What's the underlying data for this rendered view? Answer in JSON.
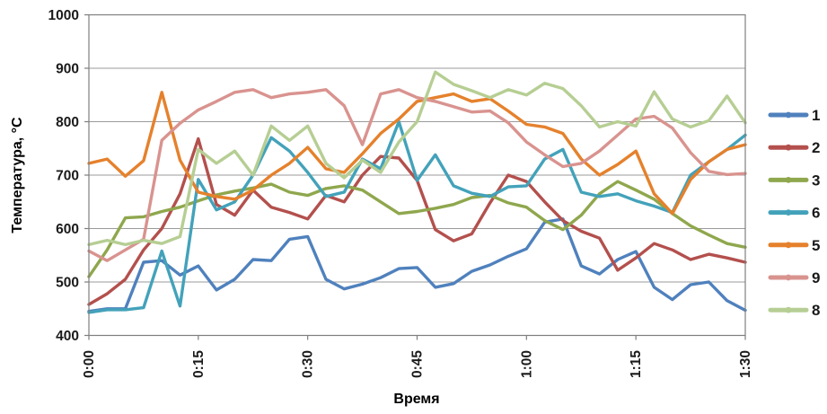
{
  "chart_data": {
    "type": "line",
    "title": "",
    "xlabel": "Время",
    "ylabel": "Температура, °C",
    "ylim": [
      400,
      1000
    ],
    "y_ticks": [
      400,
      500,
      600,
      700,
      800,
      900,
      1000
    ],
    "x_tick_minutes": [
      0,
      15,
      30,
      45,
      60,
      75,
      90
    ],
    "x_tick_labels": [
      "0:00",
      "0:15",
      "0:30",
      "0:45",
      "1:00",
      "1:15",
      "1:30"
    ],
    "grid": "horizontal",
    "legend_position": "right",
    "x_minutes": [
      0,
      2.5,
      5,
      7.5,
      10,
      12.5,
      15,
      17.5,
      20,
      22.5,
      25,
      27.5,
      30,
      32.5,
      35,
      37.5,
      40,
      42.5,
      45,
      47.5,
      50,
      52.5,
      55,
      57.5,
      60,
      62.5,
      65,
      67.5,
      70,
      72.5,
      75,
      77.5,
      80,
      82.5,
      85,
      87.5,
      90
    ],
    "series": [
      {
        "name": "1",
        "color": "#4F81BD",
        "values": [
          445,
          450,
          450,
          537,
          540,
          513,
          530,
          485,
          505,
          542,
          540,
          580,
          585,
          505,
          487,
          496,
          508,
          525,
          527,
          490,
          497,
          520,
          532,
          548,
          562,
          612,
          618,
          530,
          515,
          542,
          557,
          490,
          467,
          495,
          500,
          465,
          447
        ]
      },
      {
        "name": "2",
        "color": "#B3504D",
        "values": [
          458,
          478,
          505,
          560,
          600,
          665,
          768,
          645,
          625,
          672,
          640,
          630,
          618,
          662,
          650,
          700,
          735,
          732,
          690,
          598,
          577,
          590,
          648,
          700,
          688,
          650,
          615,
          595,
          582,
          522,
          545,
          572,
          560,
          542,
          552,
          545,
          537
        ]
      },
      {
        "name": "3",
        "color": "#8FA74D",
        "values": [
          510,
          560,
          620,
          622,
          632,
          640,
          652,
          663,
          670,
          676,
          683,
          668,
          662,
          675,
          680,
          672,
          650,
          628,
          632,
          638,
          645,
          658,
          662,
          648,
          640,
          615,
          598,
          625,
          665,
          688,
          672,
          655,
          628,
          605,
          588,
          572,
          565
        ]
      },
      {
        "name": "6",
        "color": "#43A2BA",
        "values": [
          443,
          448,
          448,
          452,
          558,
          455,
          692,
          635,
          650,
          700,
          770,
          745,
          705,
          660,
          668,
          730,
          712,
          800,
          690,
          738,
          680,
          666,
          660,
          678,
          680,
          730,
          748,
          668,
          660,
          665,
          652,
          642,
          630,
          700,
          725,
          748,
          775
        ]
      },
      {
        "name": "5",
        "color": "#E5812C",
        "values": [
          722,
          730,
          698,
          727,
          855,
          728,
          668,
          660,
          655,
          672,
          700,
          722,
          752,
          712,
          705,
          740,
          778,
          805,
          838,
          845,
          852,
          838,
          843,
          820,
          795,
          790,
          778,
          730,
          700,
          720,
          745,
          665,
          628,
          692,
          725,
          748,
          757
        ]
      },
      {
        "name": "9",
        "color": "#D9938F",
        "values": [
          558,
          540,
          560,
          580,
          765,
          797,
          822,
          838,
          855,
          860,
          845,
          852,
          855,
          860,
          830,
          757,
          852,
          860,
          845,
          838,
          828,
          818,
          820,
          798,
          762,
          738,
          716,
          722,
          745,
          775,
          805,
          810,
          788,
          742,
          707,
          701,
          703
        ]
      },
      {
        "name": "8",
        "color": "#B6CE93",
        "values": [
          570,
          578,
          570,
          578,
          572,
          585,
          748,
          722,
          745,
          700,
          792,
          765,
          792,
          722,
          695,
          728,
          705,
          762,
          800,
          893,
          870,
          858,
          845,
          860,
          850,
          872,
          862,
          830,
          790,
          800,
          792,
          856,
          805,
          790,
          802,
          848,
          798
        ]
      }
    ],
    "colors": {
      "grid": "#9b9b9b",
      "border": "#7f7f7f",
      "background": "#ffffff",
      "text": "#1a1a1a"
    }
  }
}
